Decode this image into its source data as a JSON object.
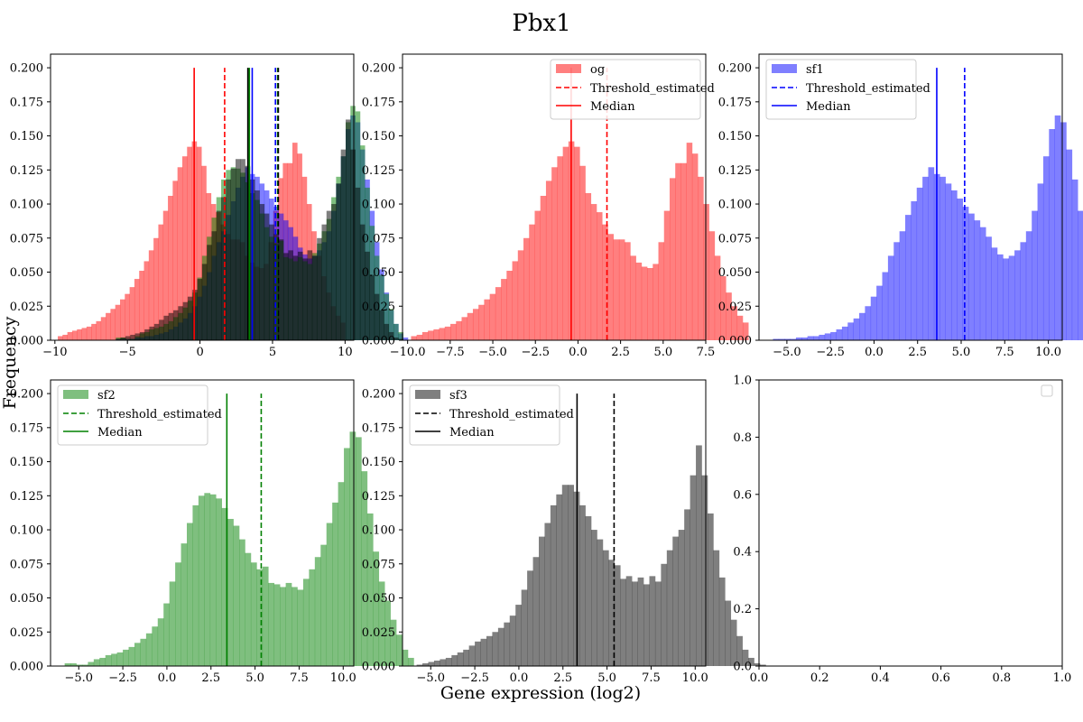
{
  "figure": {
    "title": "Pbx1",
    "xlabel": "Gene expression (log2)",
    "ylabel": "Frequency"
  },
  "chart_data": [
    {
      "type": "histogram",
      "panel": "top-left",
      "xlim": [
        -10.3,
        10.6
      ],
      "ylim": [
        0,
        0.21
      ],
      "xticks": [
        -10,
        -5,
        0,
        5,
        10
      ],
      "yticks": [
        0,
        0.025,
        0.05,
        0.075,
        0.1,
        0.125,
        0.15,
        0.175,
        0.2
      ],
      "ytick_labels": [
        "0.000",
        "0.025",
        "0.050",
        "0.075",
        "0.100",
        "0.125",
        "0.150",
        "0.175",
        "0.200"
      ],
      "series": [
        {
          "key": "og",
          "color": "#ff0000",
          "alpha": 0.5,
          "bin_start": -9.8,
          "bin_width": 0.33,
          "values": [
            0.003,
            0.004,
            0.006,
            0.007,
            0.008,
            0.009,
            0.01,
            0.012,
            0.014,
            0.017,
            0.02,
            0.023,
            0.026,
            0.03,
            0.034,
            0.039,
            0.045,
            0.051,
            0.058,
            0.066,
            0.075,
            0.085,
            0.095,
            0.106,
            0.117,
            0.127,
            0.135,
            0.142,
            0.146,
            0.142,
            0.128,
            0.108,
            0.1,
            0.094,
            0.085,
            0.078,
            0.074,
            0.074,
            0.072,
            0.062,
            0.057,
            0.054,
            0.053,
            0.056,
            0.072,
            0.095,
            0.119,
            0.13,
            0.13,
            0.145,
            0.137,
            0.12,
            0.1,
            0.08,
            0.062,
            0.047,
            0.035,
            0.025,
            0.018,
            0.013
          ]
        },
        {
          "key": "sf1",
          "color": "#0000ff",
          "alpha": 0.5,
          "bin_start": -5.8,
          "bin_width": 0.33,
          "values": [
            0.001,
            0.001,
            0.001,
            0.001,
            0.002,
            0.002,
            0.003,
            0.003,
            0.004,
            0.005,
            0.006,
            0.008,
            0.01,
            0.013,
            0.016,
            0.02,
            0.025,
            0.032,
            0.04,
            0.05,
            0.062,
            0.072,
            0.08,
            0.092,
            0.102,
            0.112,
            0.12,
            0.127,
            0.122,
            0.12,
            0.115,
            0.11,
            0.104,
            0.098,
            0.093,
            0.088,
            0.083,
            0.076,
            0.068,
            0.063,
            0.06,
            0.062,
            0.066,
            0.072,
            0.08,
            0.095,
            0.115,
            0.135,
            0.155,
            0.165,
            0.16,
            0.14,
            0.118,
            0.095,
            0.072,
            0.052,
            0.035,
            0.022,
            0.012,
            0.005,
            0.002
          ]
        },
        {
          "key": "sf2",
          "color": "#008000",
          "alpha": 0.5,
          "bin_start": -5.8,
          "bin_width": 0.33,
          "values": [
            0.002,
            0.002,
            0.001,
            0.001,
            0.003,
            0.005,
            0.006,
            0.008,
            0.009,
            0.01,
            0.012,
            0.014,
            0.017,
            0.02,
            0.024,
            0.029,
            0.035,
            0.046,
            0.062,
            0.076,
            0.09,
            0.105,
            0.118,
            0.125,
            0.127,
            0.126,
            0.123,
            0.116,
            0.108,
            0.103,
            0.093,
            0.083,
            0.076,
            0.071,
            0.073,
            0.061,
            0.06,
            0.058,
            0.061,
            0.058,
            0.056,
            0.064,
            0.071,
            0.08,
            0.089,
            0.105,
            0.12,
            0.135,
            0.16,
            0.172,
            0.168,
            0.143,
            0.112,
            0.084,
            0.062,
            0.048,
            0.034,
            0.023,
            0.012,
            0.006
          ]
        },
        {
          "key": "sf3",
          "color": "#000000",
          "alpha": 0.5,
          "bin_start": -5.8,
          "bin_width": 0.33,
          "values": [
            0.001,
            0.002,
            0.003,
            0.004,
            0.005,
            0.006,
            0.008,
            0.01,
            0.012,
            0.015,
            0.018,
            0.02,
            0.022,
            0.025,
            0.028,
            0.032,
            0.037,
            0.045,
            0.056,
            0.07,
            0.08,
            0.095,
            0.105,
            0.118,
            0.126,
            0.133,
            0.133,
            0.128,
            0.118,
            0.11,
            0.1,
            0.093,
            0.085,
            0.078,
            0.074,
            0.064,
            0.066,
            0.062,
            0.065,
            0.06,
            0.066,
            0.062,
            0.075,
            0.085,
            0.095,
            0.1,
            0.115,
            0.14,
            0.162,
            0.14,
            0.112,
            0.085,
            0.065,
            0.048,
            0.034,
            0.022,
            0.012,
            0.006,
            0.002,
            0.001
          ]
        }
      ],
      "vlines": [
        {
          "x": -0.4,
          "color": "#ff0000",
          "dash": false
        },
        {
          "x": 1.7,
          "color": "#ff0000",
          "dash": true
        },
        {
          "x": 3.3,
          "color": "#000000",
          "dash": false
        },
        {
          "x": 3.4,
          "color": "#008000",
          "dash": false
        },
        {
          "x": 3.6,
          "color": "#0000ff",
          "dash": false
        },
        {
          "x": 5.2,
          "color": "#0000ff",
          "dash": true
        },
        {
          "x": 5.35,
          "color": "#008000",
          "dash": true
        },
        {
          "x": 5.4,
          "color": "#000000",
          "dash": true
        }
      ],
      "vline_top": 0.2,
      "legend": null
    },
    {
      "type": "histogram",
      "panel": "top-middle",
      "xlim": [
        -10.3,
        7.5
      ],
      "ylim": [
        0,
        0.21
      ],
      "xticks": [
        -10,
        -7.5,
        -5,
        -2.5,
        0,
        2.5,
        5,
        7.5
      ],
      "xtick_labels": [
        "−10.0",
        "−7.5",
        "−5.0",
        "−2.5",
        "0.0",
        "2.5",
        "5.0",
        "7.5"
      ],
      "yticks": [
        0,
        0.025,
        0.05,
        0.075,
        0.1,
        0.125,
        0.15,
        0.175,
        0.2
      ],
      "ytick_labels": [
        "0.000",
        "0.025",
        "0.050",
        "0.075",
        "0.100",
        "0.125",
        "0.150",
        "0.175",
        "0.200"
      ],
      "series": [
        {
          "key": "og",
          "color": "#ff0000",
          "alpha": 0.5,
          "bin_start": -9.8,
          "bin_width": 0.33,
          "values": [
            0.003,
            0.004,
            0.006,
            0.007,
            0.008,
            0.009,
            0.01,
            0.012,
            0.014,
            0.017,
            0.02,
            0.023,
            0.026,
            0.03,
            0.034,
            0.039,
            0.045,
            0.051,
            0.058,
            0.066,
            0.075,
            0.085,
            0.095,
            0.106,
            0.117,
            0.127,
            0.135,
            0.142,
            0.146,
            0.142,
            0.128,
            0.108,
            0.1,
            0.094,
            0.085,
            0.078,
            0.074,
            0.074,
            0.072,
            0.062,
            0.057,
            0.054,
            0.053,
            0.056,
            0.072,
            0.095,
            0.119,
            0.13,
            0.13,
            0.145,
            0.137,
            0.12,
            0.1,
            0.08,
            0.062,
            0.047,
            0.035,
            0.025,
            0.018,
            0.013
          ]
        }
      ],
      "vlines": [
        {
          "x": -0.4,
          "color": "#ff0000",
          "dash": false
        },
        {
          "x": 1.7,
          "color": "#ff0000",
          "dash": true
        }
      ],
      "vline_top": 0.2,
      "legend": {
        "position": "top-right",
        "hist_label": "og",
        "threshold_label": "Threshold_estimated",
        "median_label": "Median",
        "color": "#ff0000",
        "alpha": 0.5
      }
    },
    {
      "type": "histogram",
      "panel": "top-right",
      "xlim": [
        -6.6,
        10.8
      ],
      "ylim": [
        0,
        0.21
      ],
      "xticks": [
        -5,
        -2.5,
        0,
        2.5,
        5,
        7.5,
        10
      ],
      "xtick_labels": [
        "−5.0",
        "−2.5",
        "0.0",
        "2.5",
        "5.0",
        "7.5",
        "10.0"
      ],
      "yticks": [
        0,
        0.025,
        0.05,
        0.075,
        0.1,
        0.125,
        0.15,
        0.175,
        0.2
      ],
      "ytick_labels": [
        "0.000",
        "0.025",
        "0.050",
        "0.075",
        "0.100",
        "0.125",
        "0.150",
        "0.175",
        "0.200"
      ],
      "series": [
        {
          "key": "sf1",
          "color": "#0000ff",
          "alpha": 0.5,
          "bin_start": -5.8,
          "bin_width": 0.33,
          "values": [
            0.001,
            0.001,
            0.001,
            0.001,
            0.002,
            0.002,
            0.003,
            0.003,
            0.004,
            0.005,
            0.006,
            0.008,
            0.01,
            0.013,
            0.016,
            0.02,
            0.025,
            0.032,
            0.04,
            0.05,
            0.062,
            0.072,
            0.08,
            0.092,
            0.102,
            0.112,
            0.12,
            0.127,
            0.122,
            0.12,
            0.115,
            0.11,
            0.104,
            0.098,
            0.093,
            0.088,
            0.083,
            0.076,
            0.068,
            0.063,
            0.06,
            0.062,
            0.066,
            0.072,
            0.08,
            0.095,
            0.115,
            0.135,
            0.155,
            0.165,
            0.16,
            0.14,
            0.118,
            0.095,
            0.072,
            0.052,
            0.035,
            0.022,
            0.012,
            0.005,
            0.002
          ]
        }
      ],
      "vlines": [
        {
          "x": 3.6,
          "color": "#0000ff",
          "dash": false
        },
        {
          "x": 5.2,
          "color": "#0000ff",
          "dash": true
        }
      ],
      "vline_top": 0.2,
      "legend": {
        "position": "top-left",
        "hist_label": "sf1",
        "threshold_label": "Threshold_estimated",
        "median_label": "Median",
        "color": "#0000ff",
        "alpha": 0.5
      }
    },
    {
      "type": "histogram",
      "panel": "bottom-left",
      "xlim": [
        -6.6,
        10.6
      ],
      "ylim": [
        0,
        0.21
      ],
      "xticks": [
        -5,
        -2.5,
        0,
        2.5,
        5,
        7.5,
        10
      ],
      "xtick_labels": [
        "−5.0",
        "−2.5",
        "0.0",
        "2.5",
        "5.0",
        "7.5",
        "10.0"
      ],
      "yticks": [
        0,
        0.025,
        0.05,
        0.075,
        0.1,
        0.125,
        0.15,
        0.175,
        0.2
      ],
      "ytick_labels": [
        "0.000",
        "0.025",
        "0.050",
        "0.075",
        "0.100",
        "0.125",
        "0.150",
        "0.175",
        "0.200"
      ],
      "series": [
        {
          "key": "sf2",
          "color": "#008000",
          "alpha": 0.5,
          "bin_start": -5.8,
          "bin_width": 0.33,
          "values": [
            0.002,
            0.002,
            0.001,
            0.001,
            0.003,
            0.005,
            0.006,
            0.008,
            0.009,
            0.01,
            0.012,
            0.014,
            0.017,
            0.02,
            0.024,
            0.029,
            0.035,
            0.046,
            0.062,
            0.076,
            0.09,
            0.105,
            0.118,
            0.125,
            0.127,
            0.126,
            0.123,
            0.116,
            0.108,
            0.103,
            0.093,
            0.083,
            0.076,
            0.071,
            0.073,
            0.061,
            0.06,
            0.058,
            0.061,
            0.058,
            0.056,
            0.064,
            0.071,
            0.08,
            0.089,
            0.105,
            0.12,
            0.135,
            0.16,
            0.172,
            0.168,
            0.143,
            0.112,
            0.084,
            0.062,
            0.048,
            0.034,
            0.023,
            0.012,
            0.006
          ]
        }
      ],
      "vlines": [
        {
          "x": 3.4,
          "color": "#008000",
          "dash": false
        },
        {
          "x": 5.35,
          "color": "#008000",
          "dash": true
        }
      ],
      "vline_top": 0.2,
      "legend": {
        "position": "top-left",
        "hist_label": "sf2",
        "threshold_label": "Threshold_estimated",
        "median_label": "Median",
        "color": "#008000",
        "alpha": 0.5
      }
    },
    {
      "type": "histogram",
      "panel": "bottom-middle",
      "xlim": [
        -6.6,
        10.6
      ],
      "ylim": [
        0,
        0.21
      ],
      "xticks": [
        -5,
        -2.5,
        0,
        2.5,
        5,
        7.5,
        10
      ],
      "xtick_labels": [
        "−5.0",
        "−2.5",
        "0.0",
        "2.5",
        "5.0",
        "7.5",
        "10.0"
      ],
      "yticks": [
        0,
        0.025,
        0.05,
        0.075,
        0.1,
        0.125,
        0.15,
        0.175,
        0.2
      ],
      "ytick_labels": [
        "0.000",
        "0.025",
        "0.050",
        "0.075",
        "0.100",
        "0.125",
        "0.150",
        "0.175",
        "0.200"
      ],
      "series": [
        {
          "key": "sf3",
          "color": "#000000",
          "alpha": 0.5,
          "bin_start": -5.8,
          "bin_width": 0.33,
          "values": [
            0.001,
            0.002,
            0.003,
            0.004,
            0.005,
            0.006,
            0.008,
            0.01,
            0.012,
            0.015,
            0.018,
            0.02,
            0.022,
            0.025,
            0.028,
            0.032,
            0.037,
            0.045,
            0.056,
            0.07,
            0.08,
            0.095,
            0.105,
            0.118,
            0.126,
            0.133,
            0.133,
            0.128,
            0.118,
            0.11,
            0.1,
            0.093,
            0.085,
            0.078,
            0.074,
            0.064,
            0.066,
            0.062,
            0.065,
            0.06,
            0.066,
            0.062,
            0.075,
            0.085,
            0.095,
            0.1,
            0.115,
            0.14,
            0.162,
            0.14,
            0.112,
            0.085,
            0.065,
            0.048,
            0.034,
            0.022,
            0.012,
            0.006,
            0.002,
            0.001
          ]
        }
      ],
      "vlines": [
        {
          "x": 3.3,
          "color": "#000000",
          "dash": false
        },
        {
          "x": 5.4,
          "color": "#000000",
          "dash": true
        }
      ],
      "vline_top": 0.2,
      "legend": {
        "position": "top-left",
        "hist_label": "sf3",
        "threshold_label": "Threshold_estimated",
        "median_label": "Median",
        "color": "#000000",
        "alpha": 0.5
      }
    },
    {
      "type": "empty",
      "panel": "bottom-right",
      "xlim": [
        0,
        1
      ],
      "ylim": [
        0,
        1
      ],
      "xticks": [
        0,
        0.2,
        0.4,
        0.6,
        0.8,
        1
      ],
      "xtick_labels": [
        "0.0",
        "0.2",
        "0.4",
        "0.6",
        "0.8",
        "1.0"
      ],
      "yticks": [
        0,
        0.2,
        0.4,
        0.6,
        0.8,
        1
      ],
      "ytick_labels": [
        "0.0",
        "0.2",
        "0.4",
        "0.6",
        "0.8",
        "1.0"
      ],
      "series": [],
      "vlines": [],
      "legend": {
        "position": "top-right",
        "empty": true
      }
    }
  ]
}
